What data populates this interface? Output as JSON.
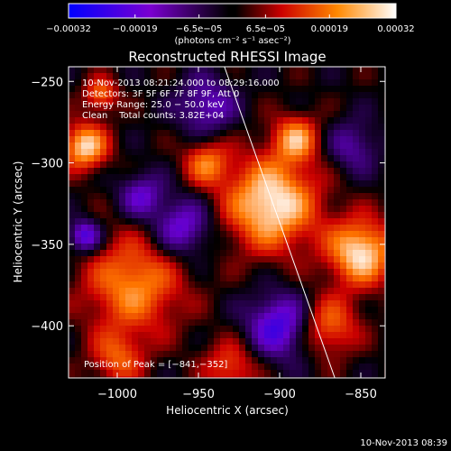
{
  "chart_data": {
    "type": "heatmap",
    "title": "Reconstructed RHESSI Image",
    "xlabel": "Heliocentric X (arcsec)",
    "ylabel": "Heliocentric Y (arcsec)",
    "xlim": [
      -1030,
      -835
    ],
    "ylim": [
      -432,
      -241
    ],
    "x_ticks": [
      -1000,
      -950,
      -900,
      -850
    ],
    "x_tick_labels": [
      "−1000",
      "−950",
      "−900",
      "−850"
    ],
    "y_ticks": [
      -250,
      -300,
      -350,
      -400
    ],
    "y_tick_labels": [
      "−250",
      "−300",
      "−350",
      "−400"
    ],
    "colorbar": {
      "range": [
        -0.00032,
        0.00032
      ],
      "ticks": [
        -0.00032,
        -0.00019,
        -6.5e-05,
        6.5e-05,
        0.00019,
        0.00032
      ],
      "tick_labels": [
        "−0.00032",
        "−0.00019",
        "−6.5e−05",
        "6.5e−05",
        "0.00019",
        "0.00032"
      ],
      "unit_label": "(photons cm⁻² s⁻¹ asec⁻²)",
      "colors": [
        "#0000ff",
        "#6600cc",
        "#000000",
        "#cc0000",
        "#ff7700",
        "#ffffff"
      ]
    },
    "annotations": {
      "time_range": "10-Nov-2013 08:21:24.000 to 08:29:16.000",
      "detectors": "Detectors: 3F 5F 6F 7F 8F 9F, Att 0",
      "energy_range": "Energy Range: 25.0 − 50.0 keV",
      "method": "Clean    Total counts: 3.82E+04",
      "peak": "Position of Peak = [−841,−352]"
    },
    "limb_line": [
      [
        -934,
        -241
      ],
      [
        -866,
        -432
      ]
    ],
    "grid": false
  },
  "footer": {
    "timestamp": "10-Nov-2013 08:39"
  }
}
